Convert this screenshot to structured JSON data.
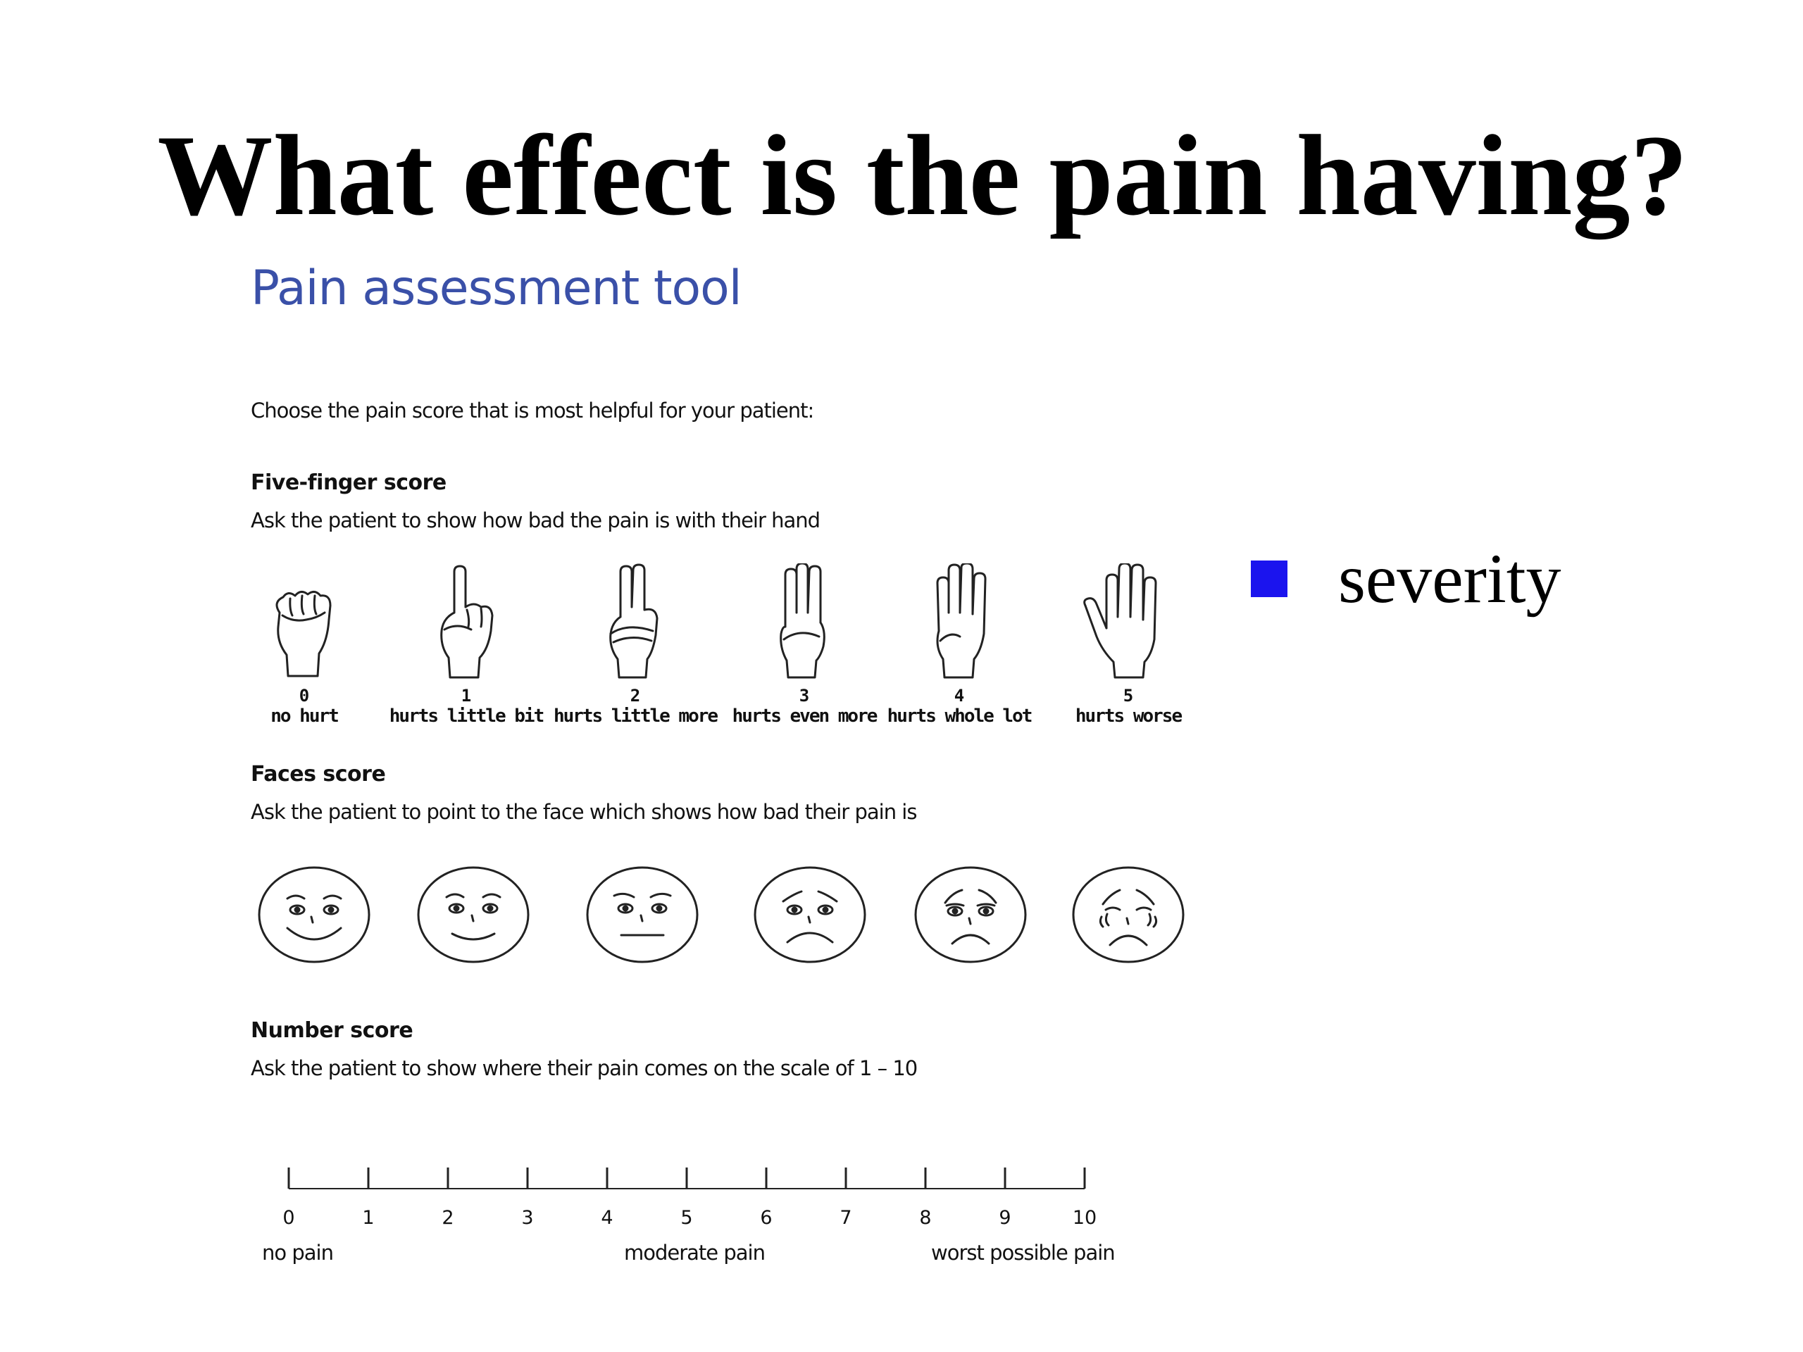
{
  "slide": {
    "title": "What effect is the pain having?",
    "bullet": {
      "text": "severity",
      "marker_color": "#1b14ee"
    }
  },
  "tool": {
    "title": "Pain assessment tool",
    "title_color": "#3a50a8",
    "intro": "Choose the pain score that is most helpful for your patient:",
    "five_finger": {
      "heading": "Five-finger score",
      "description": "Ask the patient to show how bad the pain is with their hand",
      "items": [
        {
          "score": "0",
          "label": "no hurt",
          "icon": "fist-icon"
        },
        {
          "score": "1",
          "label": "hurts little bit",
          "icon": "one-finger-icon"
        },
        {
          "score": "2",
          "label": "hurts little more",
          "icon": "two-fingers-icon"
        },
        {
          "score": "3",
          "label": "hurts even more",
          "icon": "three-fingers-icon"
        },
        {
          "score": "4",
          "label": "hurts whole lot",
          "icon": "four-fingers-icon"
        },
        {
          "score": "5",
          "label": "hurts worse",
          "icon": "open-hand-icon"
        }
      ]
    },
    "faces": {
      "heading": "Faces score",
      "description": "Ask the patient to point to the face which shows how bad their pain is",
      "items": [
        {
          "icon": "very-happy-face-icon"
        },
        {
          "icon": "happy-face-icon"
        },
        {
          "icon": "neutral-face-icon"
        },
        {
          "icon": "sad-face-icon"
        },
        {
          "icon": "very-sad-face-icon"
        },
        {
          "icon": "crying-face-icon"
        }
      ]
    },
    "number": {
      "heading": "Number score",
      "description": "Ask the patient to show where their pain comes on the scale of 1 – 10",
      "ticks": [
        "0",
        "1",
        "2",
        "3",
        "4",
        "5",
        "6",
        "7",
        "8",
        "9",
        "10"
      ],
      "anchors": {
        "low": "no pain",
        "mid": "moderate pain",
        "high": "worst possible pain"
      }
    }
  }
}
